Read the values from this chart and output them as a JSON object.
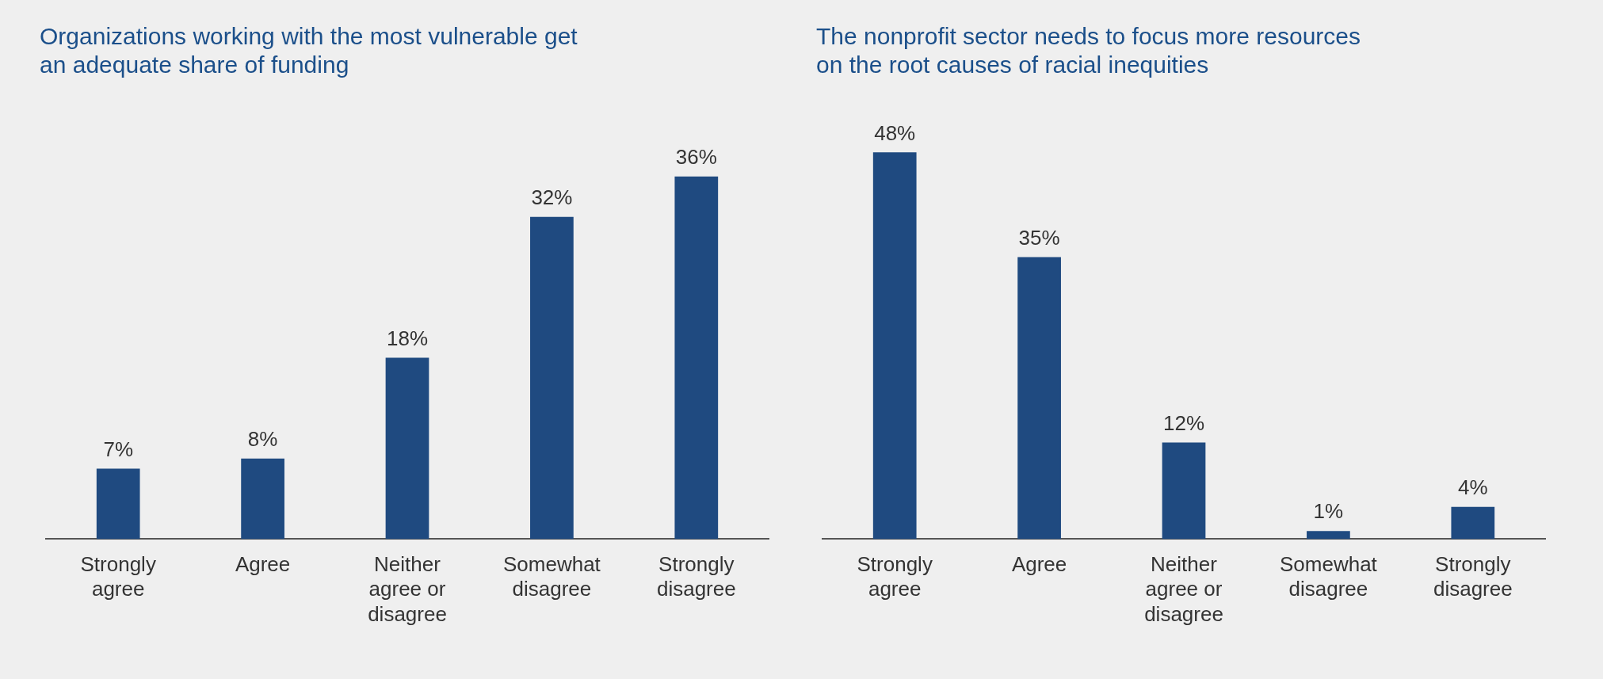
{
  "chart_data": [
    {
      "type": "bar",
      "title": "Organizations working with the most vulnerable get an adequate share of funding",
      "categories": [
        "Strongly agree",
        "Agree",
        "Neither agree or disagree",
        "Somewhat disagree",
        "Strongly disagree"
      ],
      "values": [
        7,
        8,
        18,
        32,
        36
      ],
      "value_labels": [
        "7%",
        "8%",
        "18%",
        "32%",
        "36%"
      ],
      "color": "#1f4a80",
      "grid": false,
      "legend": false,
      "tick_labels": "x"
    },
    {
      "type": "bar",
      "title": "The nonprofit sector needs to focus more resources on the root causes of racial inequities",
      "categories": [
        "Strongly agree",
        "Agree",
        "Neither agree or disagree",
        "Somewhat disagree",
        "Strongly disagree"
      ],
      "values": [
        48,
        35,
        12,
        1,
        4
      ],
      "value_labels": [
        "48%",
        "35%",
        "12%",
        "1%",
        "4%"
      ],
      "color": "#1f4a80",
      "grid": false,
      "legend": false,
      "tick_labels": "x"
    }
  ]
}
